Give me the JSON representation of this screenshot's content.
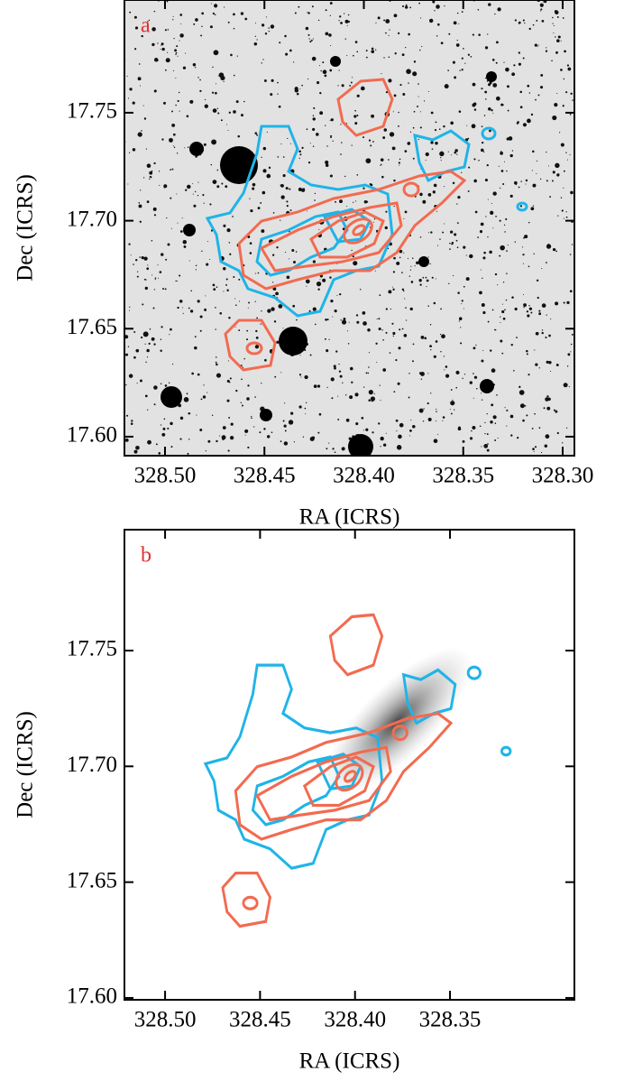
{
  "chart_data": [
    {
      "type": "image",
      "panel_label": "a",
      "xlabel": "RA (ICRS)",
      "ylabel": "Dec (ICRS)",
      "xlim": [
        328.5204,
        328.2941
      ],
      "ylim": [
        17.5912,
        17.8022
      ],
      "xticks": [
        {
          "value": 328.5,
          "label": "328.50"
        },
        328.45,
        {
          "value": 328.4,
          "label": "328.40"
        },
        328.35,
        {
          "value": 328.3,
          "label": "328.30"
        }
      ],
      "yticks": [
        {
          "value": 17.6,
          "label": "17.60"
        },
        17.65,
        {
          "value": 17.7,
          "label": "17.70"
        },
        17.75
      ]
    },
    {
      "type": "image",
      "panel_label": "b",
      "xlabel": "RA (ICRS)",
      "ylabel": "Dec (ICRS)",
      "xlim": [
        328.5214,
        328.2845
      ],
      "ylim": [
        17.5992,
        17.8022
      ],
      "xticks": [
        {
          "value": 328.5,
          "label": "328.50"
        },
        328.45,
        {
          "value": 328.4,
          "label": "328.40"
        },
        328.35
      ],
      "yticks": [
        {
          "value": 17.6,
          "label": "17.60"
        },
        17.65,
        {
          "value": 17.7,
          "label": "17.70"
        },
        17.75
      ]
    }
  ]
}
